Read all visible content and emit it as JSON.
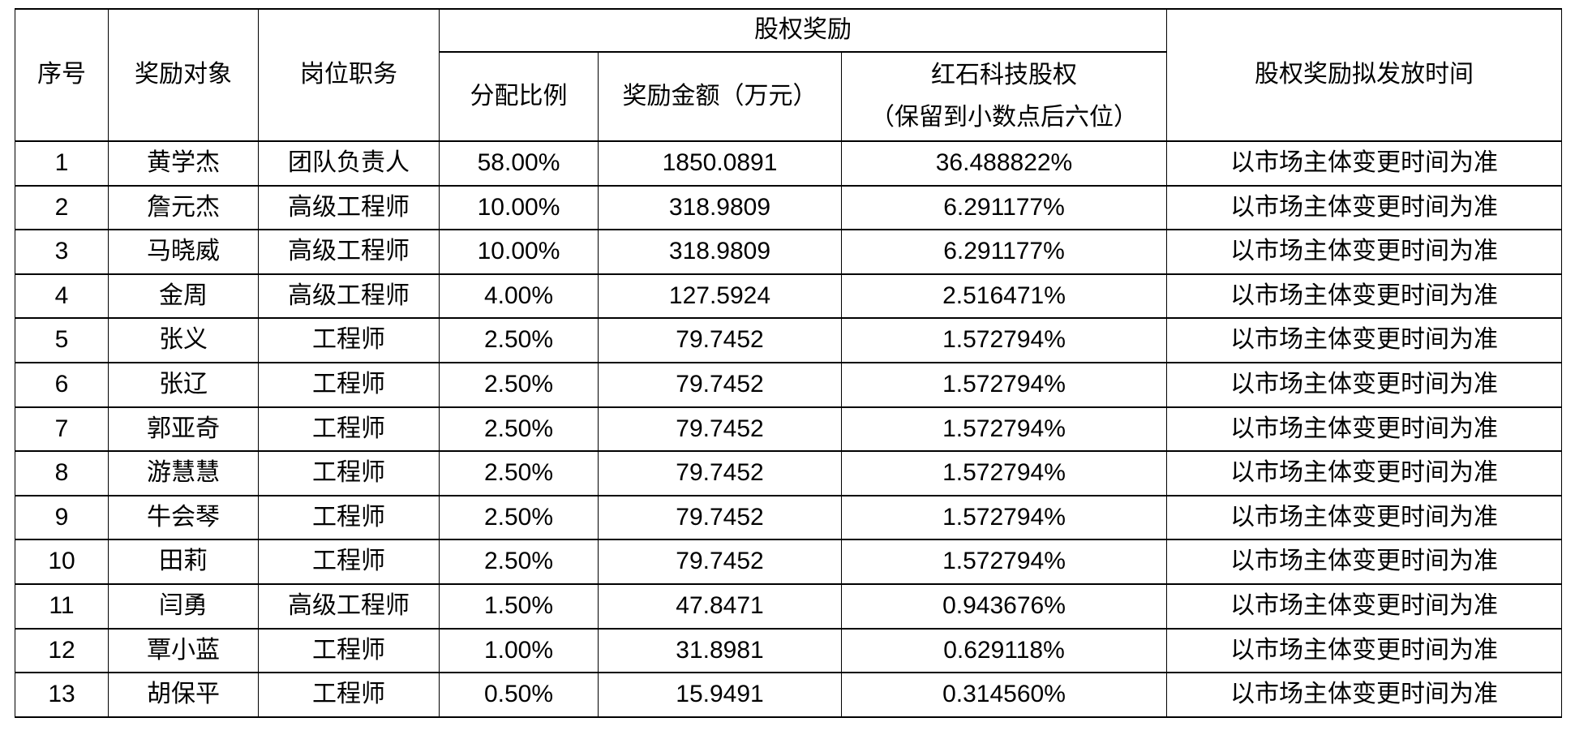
{
  "colors": {
    "background": "#ffffff",
    "border": "#000000",
    "text": "#000000"
  },
  "table": {
    "headers": {
      "index": "序号",
      "recipient": "奖励对象",
      "position": "岗位职务",
      "equity_group": "股权奖励",
      "ratio": "分配比例",
      "amount": "奖励金额（万元）",
      "equity_line1": "红石科技股权",
      "equity_line2": "（保留到小数点后六位）",
      "time": "股权奖励拟发放时间"
    },
    "rows": [
      {
        "no": "1",
        "name": "黄学杰",
        "position": "团队负责人",
        "ratio": "58.00%",
        "amount": "1850.0891",
        "equity": "36.488822%",
        "time": "以市场主体变更时间为准"
      },
      {
        "no": "2",
        "name": "詹元杰",
        "position": "高级工程师",
        "ratio": "10.00%",
        "amount": "318.9809",
        "equity": "6.291177%",
        "time": "以市场主体变更时间为准"
      },
      {
        "no": "3",
        "name": "马晓威",
        "position": "高级工程师",
        "ratio": "10.00%",
        "amount": "318.9809",
        "equity": "6.291177%",
        "time": "以市场主体变更时间为准"
      },
      {
        "no": "4",
        "name": "金周",
        "position": "高级工程师",
        "ratio": "4.00%",
        "amount": "127.5924",
        "equity": "2.516471%",
        "time": "以市场主体变更时间为准"
      },
      {
        "no": "5",
        "name": "张义",
        "position": "工程师",
        "ratio": "2.50%",
        "amount": "79.7452",
        "equity": "1.572794%",
        "time": "以市场主体变更时间为准"
      },
      {
        "no": "6",
        "name": "张辽",
        "position": "工程师",
        "ratio": "2.50%",
        "amount": "79.7452",
        "equity": "1.572794%",
        "time": "以市场主体变更时间为准"
      },
      {
        "no": "7",
        "name": "郭亚奇",
        "position": "工程师",
        "ratio": "2.50%",
        "amount": "79.7452",
        "equity": "1.572794%",
        "time": "以市场主体变更时间为准"
      },
      {
        "no": "8",
        "name": "游慧慧",
        "position": "工程师",
        "ratio": "2.50%",
        "amount": "79.7452",
        "equity": "1.572794%",
        "time": "以市场主体变更时间为准"
      },
      {
        "no": "9",
        "name": "牛会琴",
        "position": "工程师",
        "ratio": "2.50%",
        "amount": "79.7452",
        "equity": "1.572794%",
        "time": "以市场主体变更时间为准"
      },
      {
        "no": "10",
        "name": "田莉",
        "position": "工程师",
        "ratio": "2.50%",
        "amount": "79.7452",
        "equity": "1.572794%",
        "time": "以市场主体变更时间为准"
      },
      {
        "no": "11",
        "name": "闫勇",
        "position": "高级工程师",
        "ratio": "1.50%",
        "amount": "47.8471",
        "equity": "0.943676%",
        "time": "以市场主体变更时间为准"
      },
      {
        "no": "12",
        "name": "覃小蓝",
        "position": "工程师",
        "ratio": "1.00%",
        "amount": "31.8981",
        "equity": "0.629118%",
        "time": "以市场主体变更时间为准"
      },
      {
        "no": "13",
        "name": "胡保平",
        "position": "工程师",
        "ratio": "0.50%",
        "amount": "15.9491",
        "equity": "0.314560%",
        "time": "以市场主体变更时间为准"
      }
    ]
  }
}
